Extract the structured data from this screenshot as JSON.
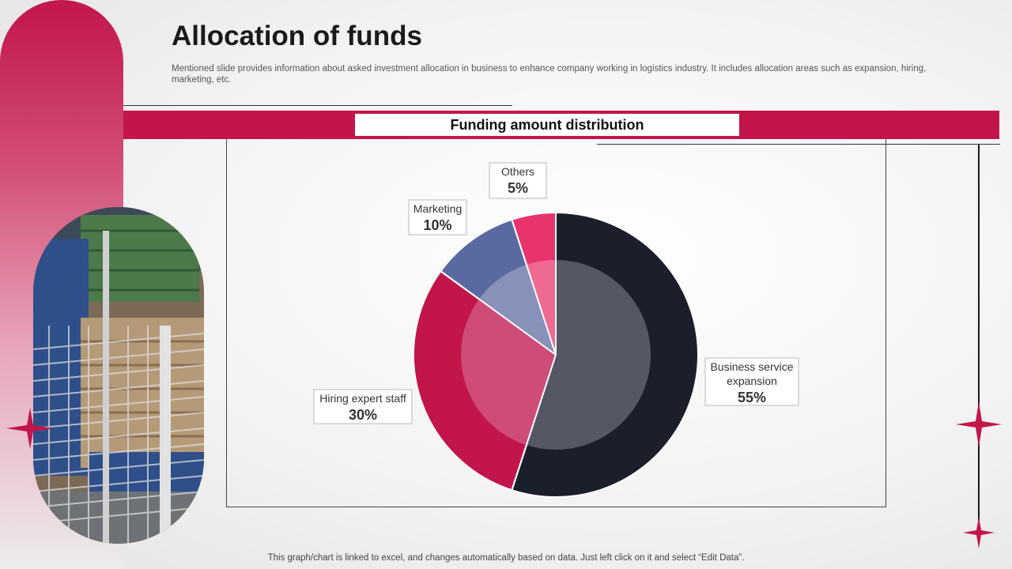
{
  "page": {
    "title": "Allocation of funds",
    "subtitle": "Mentioned slide provides information about asked investment allocation in business to enhance company working in logistics industry. It includes allocation areas such as expansion, hiring, marketing, etc.",
    "footer": "This graph/chart is linked to excel,  and changes automatically based on data. Just left click on it and select “Edit Data”."
  },
  "colors": {
    "accent": "#c2164a",
    "dark": "#1b1e2b",
    "slate_blue": "#5a6aa0",
    "pink": "#e8336b"
  },
  "chart_data": {
    "type": "pie",
    "title": "Funding amount distribution",
    "style": "double ring donut",
    "slices": [
      {
        "label": "Business service expansion",
        "value": 55,
        "value_label": "55%",
        "color": "#1b1e2b",
        "inner_color": "#555764"
      },
      {
        "label": "Hiring expert staff",
        "value": 30,
        "value_label": "30%",
        "color": "#c2164a",
        "inner_color": "#d04c78"
      },
      {
        "label": "Marketing",
        "value": 10,
        "value_label": "10%",
        "color": "#5a6aa0",
        "inner_color": "#8791b9"
      },
      {
        "label": "Others",
        "value": 5,
        "value_label": "5%",
        "color": "#e8336b",
        "inner_color": "#ee6a92"
      }
    ]
  },
  "icons": {
    "star_left": "four-point-star-icon",
    "star_right": "four-point-star-icon",
    "photo": "warehouse-pallet-rack-photo"
  }
}
